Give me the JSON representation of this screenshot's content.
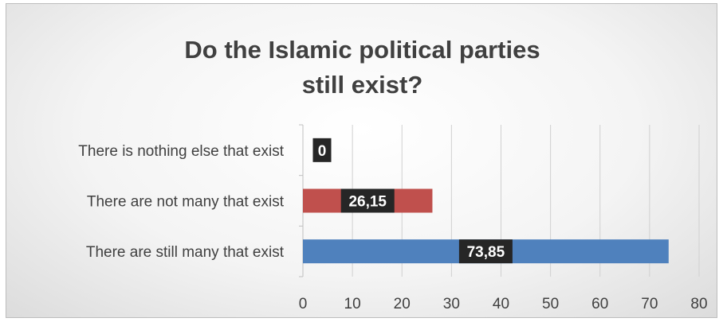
{
  "chart_data": {
    "type": "bar",
    "orientation": "horizontal",
    "title_lines": [
      "Do the Islamic political parties",
      "still exist?"
    ],
    "categories": [
      "There is nothing else that exist",
      "There are not many that exist",
      "There are still many that exist"
    ],
    "values": [
      0,
      26.15,
      73.85
    ],
    "value_labels": [
      "0",
      "26,15",
      "73,85"
    ],
    "bar_colors": [
      "#c0504d",
      "#c0504d",
      "#4f81bd"
    ],
    "label_box_color": "#262626",
    "xlim": [
      0,
      80
    ],
    "xticks": [
      0,
      10,
      20,
      30,
      40,
      50,
      60,
      70,
      80
    ],
    "grid": "vertical",
    "legend": "none"
  }
}
